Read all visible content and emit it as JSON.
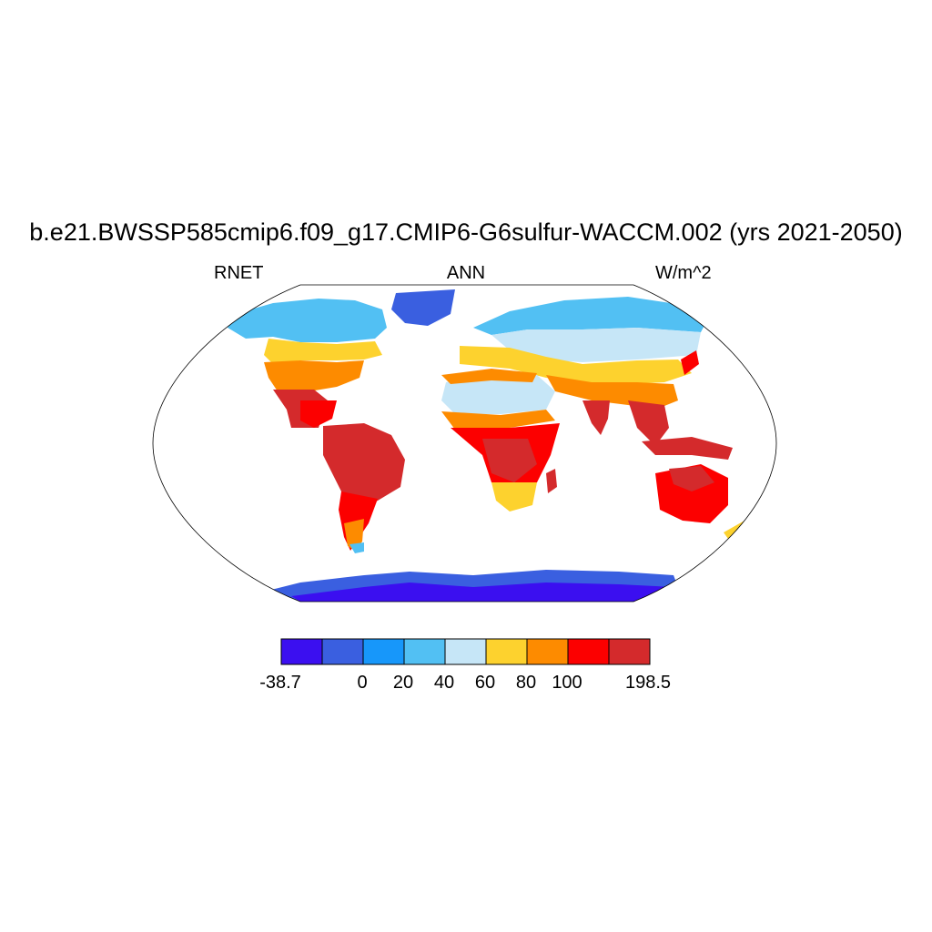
{
  "title": "b.e21.BWSSP585cmip6.f09_g17.CMIP6-G6sulfur-WACCM.002 (yrs 2021-2050)",
  "left_label": "RNET",
  "center_label": "ANN",
  "right_label": "W/m^2",
  "colorbar": {
    "colors": [
      "#3b0ff0",
      "#3a5fe0",
      "#1797fa",
      "#52c0f3",
      "#c6e6f7",
      "#fdd22e",
      "#fd8b00",
      "#fc0000",
      "#d42a2c"
    ],
    "tick_labels": [
      "-38.7",
      "0",
      "20",
      "40",
      "60",
      "80",
      "100",
      "198.5"
    ]
  },
  "colors": {
    "ocean": "#ffffff",
    "coastline": "#000000"
  }
}
